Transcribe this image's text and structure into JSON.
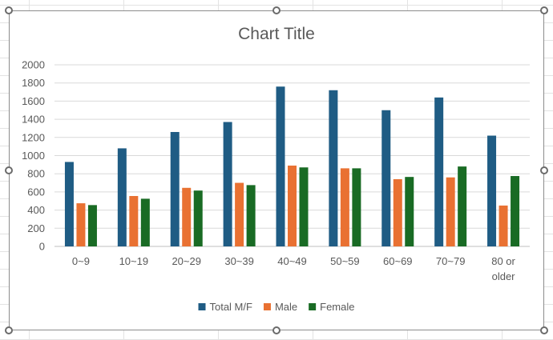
{
  "chart_data": {
    "type": "bar",
    "title": "Chart Title",
    "xlabel": "",
    "ylabel": "",
    "categories": [
      [
        "0~9"
      ],
      [
        "10~19"
      ],
      [
        "20~29"
      ],
      [
        "30~39"
      ],
      [
        "40~49"
      ],
      [
        "50~59"
      ],
      [
        "60~69"
      ],
      [
        "70~79"
      ],
      [
        "80 or",
        "older"
      ]
    ],
    "series": [
      {
        "name": "Total M/F",
        "color": "#1f5c84",
        "values": [
          930,
          1080,
          1260,
          1370,
          1760,
          1720,
          1500,
          1640,
          1220
        ]
      },
      {
        "name": "Male",
        "color": "#e97132",
        "values": [
          475,
          555,
          645,
          700,
          890,
          860,
          740,
          760,
          450
        ]
      },
      {
        "name": "Female",
        "color": "#196b24",
        "values": [
          455,
          525,
          615,
          675,
          870,
          860,
          765,
          880,
          775
        ]
      }
    ],
    "ylim": [
      0,
      2000
    ],
    "yticks": [
      0,
      200,
      400,
      600,
      800,
      1000,
      1200,
      1400,
      1600,
      1800,
      2000
    ],
    "grid": true,
    "legend": "bottom"
  }
}
